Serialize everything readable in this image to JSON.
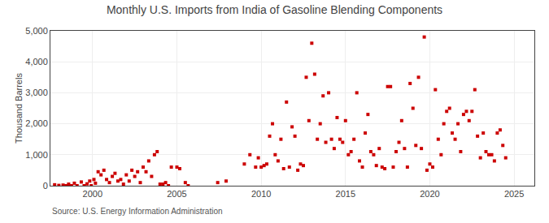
{
  "chart_data": {
    "type": "scatter",
    "title": "Monthly U.S. Imports from India of Gasoline Blending Components",
    "y_label": "Thousand Barrels",
    "annotations": [
      "Source: U.S. Energy Information Administration"
    ],
    "color": "#cc0000",
    "marker": "square",
    "grid": true,
    "xlim": [
      1997.5,
      2026.2
    ],
    "ylim": [
      0,
      5000
    ],
    "xticks": [
      2000,
      2005,
      2010,
      2015,
      2020,
      2025
    ],
    "yticks": [
      0,
      {
        "value": 1000,
        "label": "1,000"
      },
      {
        "value": 2000,
        "label": "2,000"
      },
      {
        "value": 3000,
        "label": "3,000"
      },
      {
        "value": 4000,
        "label": "4,000"
      },
      {
        "value": 5000,
        "label": "5,000"
      }
    ],
    "x": [
      1997.75,
      1998.0,
      1998.25,
      1998.42,
      1998.58,
      1998.75,
      1998.92,
      1999.08,
      1999.33,
      1999.5,
      1999.67,
      1999.83,
      1999.92,
      2000.08,
      2000.17,
      2000.33,
      2000.5,
      2000.67,
      2000.83,
      2001.0,
      2001.17,
      2001.33,
      2001.5,
      2001.67,
      2001.83,
      2002.0,
      2002.17,
      2002.33,
      2002.5,
      2002.67,
      2002.83,
      2003.0,
      2003.17,
      2003.33,
      2003.5,
      2003.67,
      2003.83,
      2004.0,
      2004.17,
      2004.33,
      2004.5,
      2004.67,
      2005.0,
      2005.17,
      2005.5,
      2005.67,
      2007.42,
      2007.92,
      2009.0,
      2009.33,
      2009.67,
      2009.83,
      2010.0,
      2010.17,
      2010.33,
      2010.5,
      2010.67,
      2010.83,
      2011.0,
      2011.17,
      2011.33,
      2011.5,
      2011.67,
      2011.83,
      2012.0,
      2012.17,
      2012.33,
      2012.5,
      2012.67,
      2012.83,
      2013.0,
      2013.17,
      2013.33,
      2013.5,
      2013.67,
      2013.83,
      2014.0,
      2014.17,
      2014.33,
      2014.5,
      2014.67,
      2014.83,
      2015.0,
      2015.17,
      2015.33,
      2015.5,
      2015.67,
      2015.83,
      2016.0,
      2016.17,
      2016.33,
      2016.5,
      2016.67,
      2016.83,
      2017.0,
      2017.17,
      2017.33,
      2017.5,
      2017.67,
      2017.83,
      2018.0,
      2018.17,
      2018.33,
      2018.5,
      2018.67,
      2018.83,
      2019.0,
      2019.17,
      2019.33,
      2019.5,
      2019.67,
      2019.83,
      2020.0,
      2020.17,
      2020.33,
      2020.5,
      2020.67,
      2020.83,
      2021.0,
      2021.17,
      2021.33,
      2021.5,
      2021.67,
      2021.83,
      2022.0,
      2022.17,
      2022.33,
      2022.5,
      2022.67,
      2022.83,
      2023.0,
      2023.17,
      2023.33,
      2023.5,
      2023.67,
      2023.83,
      2024.0,
      2024.17,
      2024.33,
      2024.5
    ],
    "values": [
      30,
      10,
      20,
      0,
      50,
      0,
      80,
      0,
      120,
      0,
      60,
      150,
      0,
      200,
      80,
      450,
      350,
      500,
      200,
      100,
      300,
      400,
      150,
      200,
      50,
      350,
      150,
      500,
      300,
      450,
      100,
      600,
      450,
      800,
      300,
      1000,
      1100,
      50,
      50,
      100,
      0,
      600,
      600,
      550,
      100,
      0,
      100,
      150,
      700,
      1000,
      600,
      900,
      600,
      650,
      700,
      1600,
      2000,
      1000,
      800,
      1500,
      550,
      2700,
      600,
      1900,
      1600,
      500,
      700,
      650,
      3500,
      2100,
      4600,
      3600,
      1500,
      2000,
      2900,
      1400,
      3000,
      1500,
      1200,
      2200,
      1500,
      1400,
      2100,
      1000,
      1100,
      1500,
      3000,
      800,
      600,
      1700,
      2300,
      1100,
      1000,
      650,
      1200,
      600,
      550,
      3200,
      3200,
      600,
      1100,
      1400,
      2100,
      1200,
      600,
      3300,
      2500,
      1300,
      3500,
      1200,
      4800,
      500,
      700,
      600,
      3100,
      1500,
      1000,
      2000,
      2400,
      2500,
      1700,
      1500,
      2000,
      1100,
      2300,
      2400,
      2100,
      2400,
      3100,
      1600,
      900,
      1700,
      1100,
      1000,
      1000,
      800,
      1700,
      1800,
      1300,
      900
    ]
  }
}
